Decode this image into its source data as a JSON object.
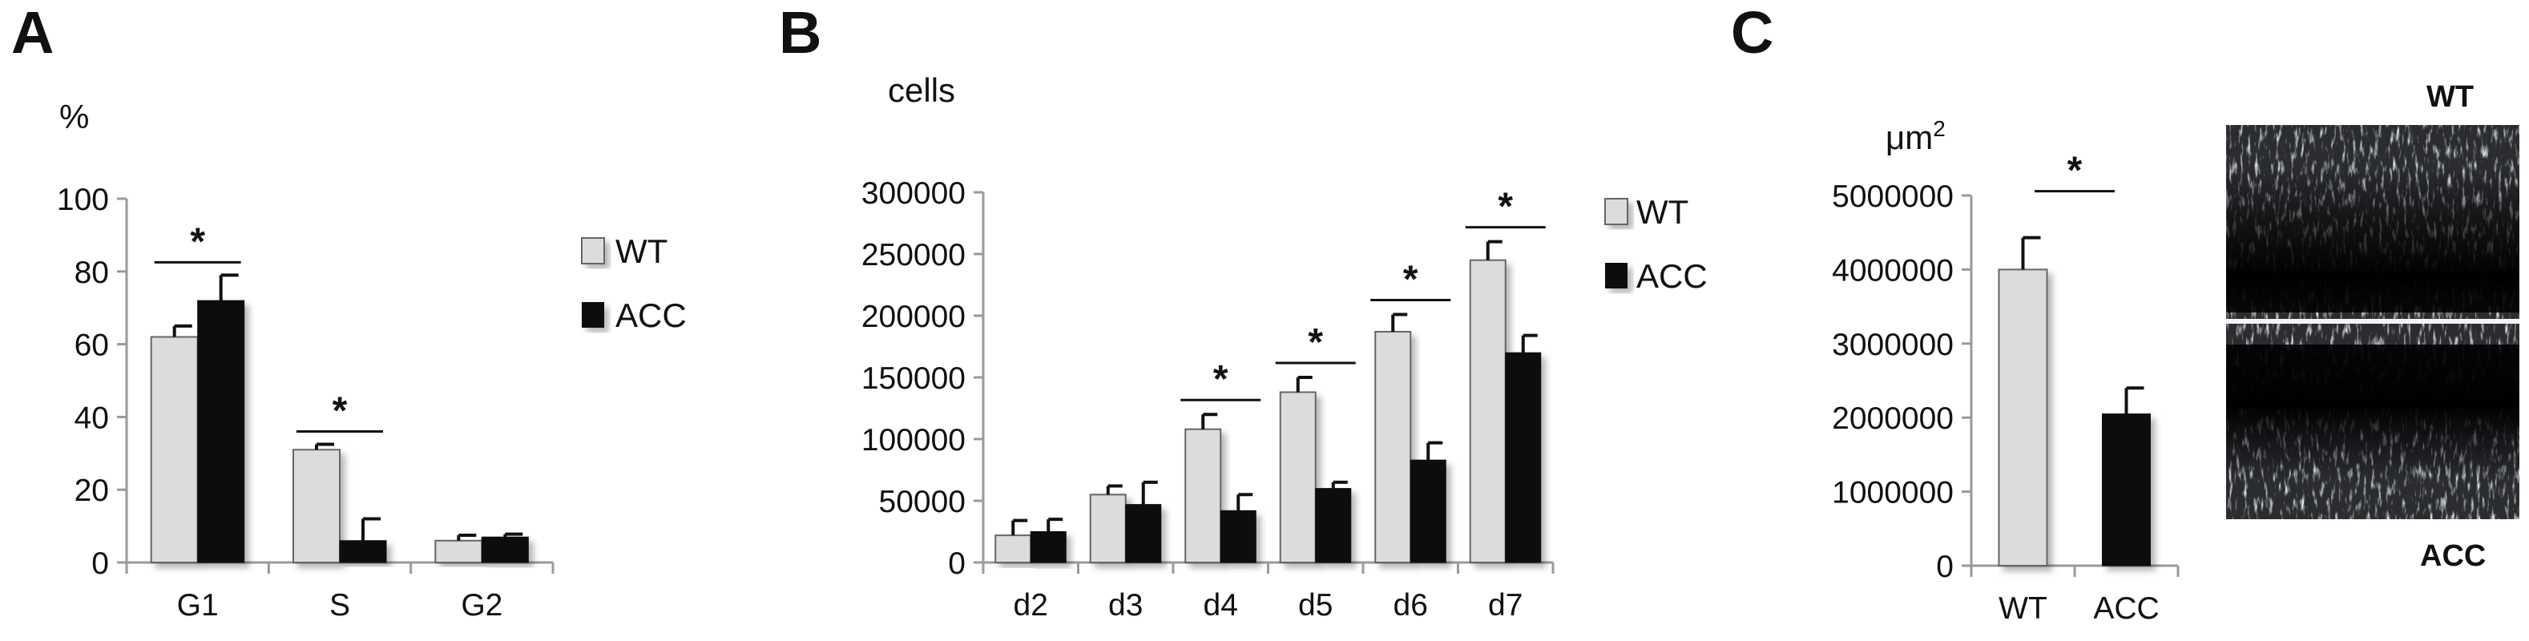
{
  "colors": {
    "wt": "#dcdcdc",
    "acc": "#0d0d0d",
    "axis": "#9a9a9a",
    "bar_edge": "#666666",
    "error": "#111111"
  },
  "chart_data": [
    {
      "panel": "A",
      "type": "bar",
      "ylabel": "%",
      "ylim": [
        0,
        100
      ],
      "yticks": [
        0,
        20,
        40,
        60,
        80,
        100
      ],
      "categories": [
        "G1",
        "S",
        "G2"
      ],
      "series": [
        {
          "name": "WT",
          "values": [
            62,
            31,
            6
          ],
          "errors": [
            3,
            1.5,
            1.5
          ]
        },
        {
          "name": "ACC",
          "values": [
            72,
            6,
            7
          ],
          "errors": [
            7,
            6,
            0.8
          ]
        }
      ],
      "significance": [
        "*",
        "*",
        ""
      ],
      "legend": "right",
      "grid": false
    },
    {
      "panel": "B",
      "type": "bar",
      "ylabel": "cells",
      "ylim": [
        0,
        300000
      ],
      "yticks": [
        0,
        50000,
        100000,
        150000,
        200000,
        250000,
        300000
      ],
      "categories": [
        "d2",
        "d3",
        "d4",
        "d5",
        "d6",
        "d7"
      ],
      "series": [
        {
          "name": "WT",
          "values": [
            22000,
            55000,
            108000,
            138000,
            187000,
            245000
          ],
          "errors": [
            12000,
            7000,
            12000,
            12000,
            14000,
            15000
          ]
        },
        {
          "name": "ACC",
          "values": [
            25000,
            47000,
            42000,
            60000,
            83000,
            170000
          ],
          "errors": [
            10000,
            18000,
            13000,
            5000,
            14000,
            14000
          ]
        }
      ],
      "significance": [
        "",
        "",
        "*",
        "*",
        "*",
        "*"
      ],
      "legend": "top-right",
      "grid": false
    },
    {
      "panel": "C",
      "type": "bar",
      "ylabel": "μm",
      "ylabel_sup": "2",
      "ylim": [
        0,
        5000000
      ],
      "yticks": [
        0,
        1000000,
        2000000,
        3000000,
        4000000,
        5000000
      ],
      "categories": [
        "WT",
        "ACC"
      ],
      "values": [
        4000000,
        2050000
      ],
      "errors": [
        430000,
        350000
      ],
      "significance": "*",
      "grid": false,
      "image_labels": [
        "WT",
        "ACC"
      ]
    }
  ]
}
